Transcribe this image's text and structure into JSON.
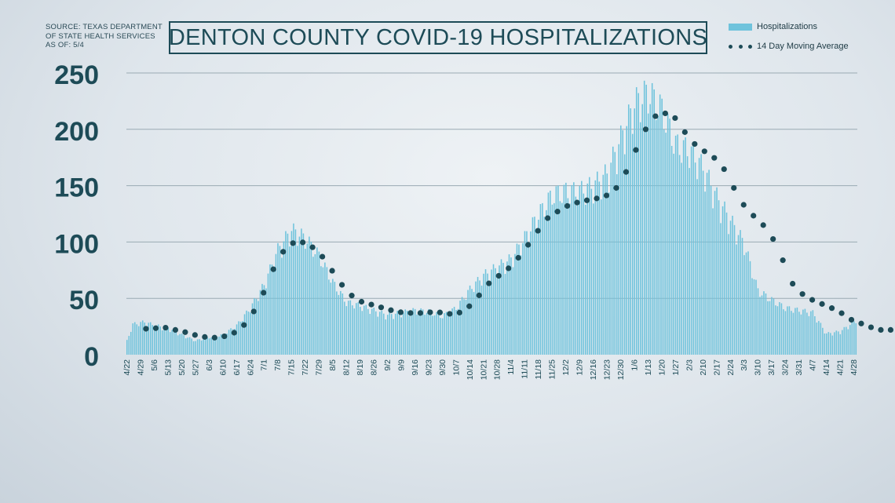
{
  "source": [
    "SOURCE: TEXAS DEPARTMENT",
    "OF STATE HEALTH SERVICES",
    "AS OF: 5/4"
  ],
  "colors": {
    "bars": "#6fc3dc",
    "moving_average": "#1d4b57",
    "text": "#1d4b57",
    "grid": "#9aaab3"
  },
  "chart_data": {
    "type": "bar",
    "title": "DENTON COUNTY COVID-19 HOSPITALIZATIONS",
    "xlabel": "",
    "ylabel": "",
    "ylim": [
      0,
      250
    ],
    "yticks": [
      0,
      50,
      100,
      150,
      200,
      250
    ],
    "grid": true,
    "legend_position": "top-right",
    "x_ticks": [
      "4/22",
      "4/29",
      "5/6",
      "5/13",
      "5/20",
      "5/27",
      "6/3",
      "6/10",
      "6/17",
      "6/24",
      "7/1",
      "7/8",
      "7/15",
      "7/22",
      "7/29",
      "8/5",
      "8/12",
      "8/19",
      "8/26",
      "9/2",
      "9/9",
      "9/16",
      "9/23",
      "9/30",
      "10/7",
      "10/14",
      "10/21",
      "10/28",
      "11/4",
      "11/11",
      "11/18",
      "11/25",
      "12/2",
      "12/9",
      "12/16",
      "12/23",
      "12/30",
      "1/6",
      "1/13",
      "1/20",
      "1/27",
      "2/3",
      "2/10",
      "2/17",
      "2/24",
      "3/3",
      "3/10",
      "3/17",
      "3/24",
      "3/31",
      "4/7",
      "4/14",
      "4/21",
      "4/28"
    ],
    "series": [
      {
        "name": "Hospitalizations",
        "kind": "bar",
        "daily_anchors": [
          [
            0,
            12
          ],
          [
            3,
            26
          ],
          [
            9,
            28
          ],
          [
            14,
            25
          ],
          [
            21,
            23
          ],
          [
            28,
            17
          ],
          [
            35,
            12
          ],
          [
            42,
            15
          ],
          [
            49,
            17
          ],
          [
            56,
            25
          ],
          [
            63,
            40
          ],
          [
            70,
            60
          ],
          [
            77,
            90
          ],
          [
            84,
            107
          ],
          [
            91,
            100
          ],
          [
            98,
            85
          ],
          [
            105,
            62
          ],
          [
            112,
            45
          ],
          [
            119,
            42
          ],
          [
            126,
            38
          ],
          [
            133,
            34
          ],
          [
            140,
            36
          ],
          [
            147,
            38
          ],
          [
            154,
            37
          ],
          [
            161,
            33
          ],
          [
            168,
            40
          ],
          [
            175,
            56
          ],
          [
            182,
            68
          ],
          [
            189,
            75
          ],
          [
            196,
            82
          ],
          [
            203,
            100
          ],
          [
            210,
            120
          ],
          [
            217,
            137
          ],
          [
            224,
            140
          ],
          [
            231,
            140
          ],
          [
            238,
            145
          ],
          [
            245,
            155
          ],
          [
            252,
            185
          ],
          [
            259,
            215
          ],
          [
            266,
            225
          ],
          [
            273,
            210
          ],
          [
            280,
            180
          ],
          [
            287,
            175
          ],
          [
            294,
            160
          ],
          [
            301,
            135
          ],
          [
            308,
            115
          ],
          [
            315,
            95
          ],
          [
            322,
            55
          ],
          [
            329,
            47
          ],
          [
            336,
            40
          ],
          [
            343,
            38
          ],
          [
            350,
            36
          ],
          [
            357,
            18
          ],
          [
            364,
            20
          ],
          [
            371,
            28
          ],
          [
            372,
            30
          ]
        ]
      },
      {
        "name": "14 Day Moving Average",
        "kind": "dotted-line",
        "daily_anchors": [
          [
            10,
            23
          ],
          [
            20,
            24
          ],
          [
            30,
            20
          ],
          [
            38,
            16
          ],
          [
            46,
            15
          ],
          [
            52,
            17
          ],
          [
            58,
            22
          ],
          [
            64,
            35
          ],
          [
            70,
            55
          ],
          [
            76,
            80
          ],
          [
            82,
            97
          ],
          [
            88,
            101
          ],
          [
            94,
            97
          ],
          [
            100,
            87
          ],
          [
            106,
            72
          ],
          [
            112,
            57
          ],
          [
            118,
            48
          ],
          [
            124,
            45
          ],
          [
            130,
            42
          ],
          [
            136,
            39
          ],
          [
            142,
            37
          ],
          [
            150,
            37
          ],
          [
            158,
            38
          ],
          [
            166,
            36
          ],
          [
            172,
            38
          ],
          [
            178,
            48
          ],
          [
            184,
            62
          ],
          [
            190,
            70
          ],
          [
            196,
            78
          ],
          [
            202,
            90
          ],
          [
            208,
            105
          ],
          [
            214,
            120
          ],
          [
            220,
            127
          ],
          [
            226,
            133
          ],
          [
            232,
            136
          ],
          [
            238,
            138
          ],
          [
            244,
            140
          ],
          [
            250,
            148
          ],
          [
            256,
            165
          ],
          [
            262,
            190
          ],
          [
            268,
            210
          ],
          [
            274,
            215
          ],
          [
            280,
            210
          ],
          [
            286,
            195
          ],
          [
            292,
            183
          ],
          [
            298,
            178
          ],
          [
            304,
            168
          ],
          [
            310,
            148
          ],
          [
            316,
            130
          ],
          [
            322,
            120
          ],
          [
            328,
            110
          ],
          [
            334,
            88
          ],
          [
            340,
            63
          ],
          [
            346,
            52
          ],
          [
            352,
            47
          ],
          [
            358,
            43
          ],
          [
            364,
            38
          ],
          [
            370,
            31
          ],
          [
            376,
            27
          ],
          [
            382,
            23
          ],
          [
            388,
            21
          ],
          [
            390,
            22
          ]
        ]
      }
    ]
  }
}
